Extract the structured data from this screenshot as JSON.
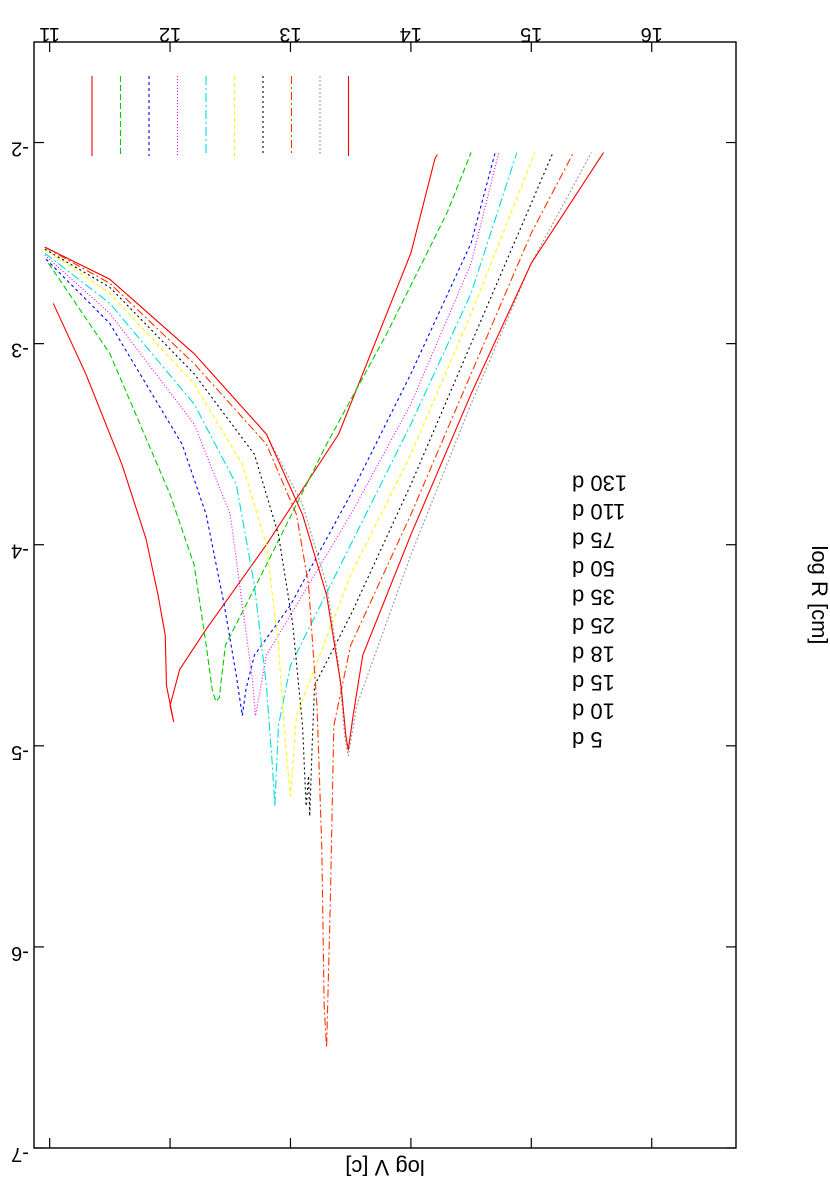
{
  "chart_data": {
    "type": "line",
    "xlabel": "log R [cm]",
    "ylabel": "log V [c]",
    "xlim": [
      10.87,
      16.7
    ],
    "ylim": [
      -7,
      -1.5
    ],
    "xticks": [
      "11",
      "12",
      "13",
      "14",
      "15",
      "16"
    ],
    "yticks": [
      "-2",
      "-3",
      "-4",
      "-5",
      "-6",
      "-7"
    ],
    "legend_position": "top-right",
    "series": [
      {
        "name": "5 d",
        "color": "#ff0000",
        "dash": "",
        "x": [
          11.03,
          11.3,
          11.6,
          11.8,
          11.9,
          11.96,
          11.97,
          12.03,
          12.0,
          12.08,
          12.3,
          12.8,
          13.4,
          14.0,
          14.17,
          14.2,
          14.22
        ],
        "y": [
          -2.8,
          -3.15,
          -3.6,
          -3.97,
          -4.25,
          -4.45,
          -4.7,
          -4.88,
          -4.8,
          -4.62,
          -4.42,
          -4.0,
          -3.45,
          -2.55,
          -2.15,
          -2.08,
          -2.06
        ]
      },
      {
        "name": "10 d",
        "color": "#00cc00",
        "dash": "6,3",
        "x": [
          10.99,
          11.5,
          12.0,
          12.2,
          12.3,
          12.35,
          12.38,
          12.41,
          12.42,
          12.46,
          12.8,
          13.3,
          13.8,
          14.3,
          14.5
        ],
        "y": [
          -2.6,
          -3.05,
          -3.75,
          -4.1,
          -4.5,
          -4.72,
          -4.78,
          -4.76,
          -4.7,
          -4.5,
          -4.1,
          -3.5,
          -2.95,
          -2.35,
          -2.05
        ]
      },
      {
        "name": "15 d",
        "color": "#0000ff",
        "dash": "3,3",
        "x": [
          10.97,
          11.5,
          12.1,
          12.3,
          12.45,
          12.55,
          12.6,
          12.63,
          12.7,
          13.0,
          13.5,
          14.0,
          14.5,
          14.7
        ],
        "y": [
          -2.58,
          -2.9,
          -3.5,
          -3.85,
          -4.3,
          -4.65,
          -4.85,
          -4.72,
          -4.55,
          -4.3,
          -3.75,
          -3.15,
          -2.5,
          -2.05
        ]
      },
      {
        "name": "18 d",
        "color": "#ee00ee",
        "dash": "1,2",
        "x": [
          10.96,
          11.5,
          12.2,
          12.5,
          12.6,
          12.68,
          12.71,
          12.74,
          12.8,
          13.0,
          13.5,
          14.0,
          14.5,
          14.73
        ],
        "y": [
          -2.56,
          -2.85,
          -3.4,
          -3.85,
          -4.3,
          -4.65,
          -4.85,
          -4.75,
          -4.55,
          -4.35,
          -3.85,
          -3.3,
          -2.6,
          -2.05
        ]
      },
      {
        "name": "25 d",
        "color": "#00dddd",
        "dash": "9,3,2,3",
        "x": [
          10.96,
          11.5,
          12.2,
          12.55,
          12.7,
          12.8,
          12.85,
          12.87,
          12.9,
          13.0,
          13.5,
          14.0,
          14.5,
          14.88
        ],
        "y": [
          -2.55,
          -2.8,
          -3.3,
          -3.7,
          -4.2,
          -4.7,
          -5.1,
          -5.3,
          -4.9,
          -4.6,
          -4.0,
          -3.4,
          -2.75,
          -2.05
        ]
      },
      {
        "name": "35 d",
        "color": "#ffff00",
        "dash": "4,3",
        "x": [
          10.96,
          11.5,
          12.2,
          12.6,
          12.8,
          12.9,
          12.96,
          13.0,
          13.05,
          13.5,
          14.0,
          14.5,
          15.03
        ],
        "y": [
          -2.53,
          -2.75,
          -3.2,
          -3.6,
          -4.0,
          -4.5,
          -5.0,
          -5.25,
          -4.85,
          -4.15,
          -3.55,
          -2.85,
          -2.05
        ]
      },
      {
        "name": "50 d",
        "color": "#000000",
        "dash": "2,3",
        "x": [
          10.96,
          11.5,
          12.2,
          12.7,
          12.9,
          13.02,
          13.1,
          13.13,
          13.15,
          13.16,
          13.18,
          13.2,
          13.5,
          14.0,
          14.5,
          15.18
        ],
        "y": [
          -2.53,
          -2.72,
          -3.15,
          -3.55,
          -3.95,
          -4.4,
          -4.9,
          -5.3,
          -5.15,
          -5.35,
          -5.0,
          -4.7,
          -4.35,
          -3.7,
          -3.0,
          -2.05
        ]
      },
      {
        "name": "75 d",
        "color": "#ff3300",
        "dash": "8,3,2,3",
        "x": [
          10.96,
          11.5,
          12.2,
          12.8,
          13.05,
          13.15,
          13.22,
          13.26,
          13.28,
          13.3,
          13.33,
          13.36,
          13.5,
          14.0,
          14.5,
          15.0,
          15.35
        ],
        "y": [
          -2.52,
          -2.7,
          -3.1,
          -3.5,
          -3.85,
          -4.2,
          -4.8,
          -5.5,
          -6.3,
          -6.5,
          -5.8,
          -4.9,
          -4.5,
          -3.85,
          -3.15,
          -2.45,
          -2.05
        ]
      },
      {
        "name": "110 d",
        "color": "#999999",
        "dash": "2,2",
        "x": [
          10.96,
          11.5,
          12.2,
          12.8,
          13.1,
          13.3,
          13.4,
          13.45,
          13.48,
          13.55,
          14.0,
          14.5,
          15.0,
          15.5
        ],
        "y": [
          -2.52,
          -2.68,
          -3.05,
          -3.45,
          -3.8,
          -4.2,
          -4.6,
          -4.95,
          -5.05,
          -4.8,
          -4.05,
          -3.3,
          -2.6,
          -2.05
        ]
      },
      {
        "name": "130 d",
        "color": "#ff0000",
        "dash": "",
        "x": [
          10.96,
          11.5,
          12.2,
          12.8,
          13.1,
          13.3,
          13.42,
          13.46,
          13.48,
          13.52,
          13.6,
          14.0,
          14.5,
          15.0,
          15.6
        ],
        "y": [
          -2.52,
          -2.68,
          -3.05,
          -3.45,
          -3.85,
          -4.25,
          -4.7,
          -4.95,
          -5.02,
          -4.85,
          -4.55,
          -3.95,
          -3.25,
          -2.6,
          -2.05
        ]
      }
    ]
  }
}
